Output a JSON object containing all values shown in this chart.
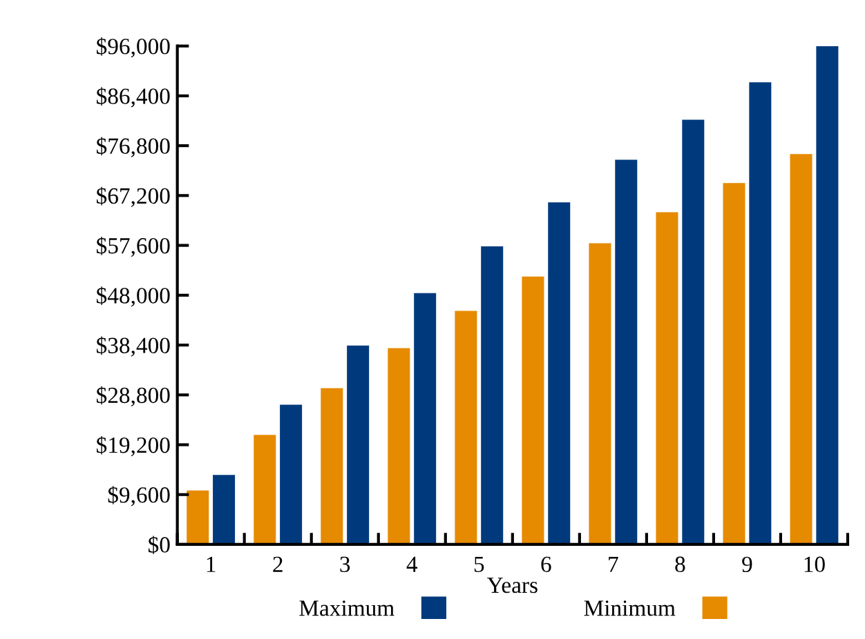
{
  "chart_data": {
    "type": "bar",
    "xlabel": "Years",
    "categories": [
      "1",
      "2",
      "3",
      "4",
      "5",
      "6",
      "7",
      "8",
      "9",
      "10"
    ],
    "series": [
      {
        "name": "Minimum",
        "color": "#e68a00",
        "values": [
          10400,
          21100,
          30100,
          37800,
          45000,
          51600,
          58000,
          64000,
          69600,
          75200
        ]
      },
      {
        "name": "Maximum",
        "color": "#003a7d",
        "values": [
          13400,
          26900,
          38300,
          48400,
          57400,
          65900,
          74100,
          81800,
          89000,
          96000
        ]
      }
    ],
    "ylim": [
      0,
      96000
    ],
    "yticks": [
      {
        "value": 0,
        "label": "$0"
      },
      {
        "value": 9600,
        "label": "$9,600"
      },
      {
        "value": 19200,
        "label": "$19,200"
      },
      {
        "value": 28800,
        "label": "$28,800"
      },
      {
        "value": 38400,
        "label": "$38,400"
      },
      {
        "value": 48000,
        "label": "$48,000"
      },
      {
        "value": 57600,
        "label": "$57,600"
      },
      {
        "value": 67200,
        "label": "$67,200"
      },
      {
        "value": 76800,
        "label": "$76,800"
      },
      {
        "value": 86400,
        "label": "$86,400"
      },
      {
        "value": 96000,
        "label": "$96,000"
      }
    ],
    "grid": false,
    "legend": "bottom"
  }
}
